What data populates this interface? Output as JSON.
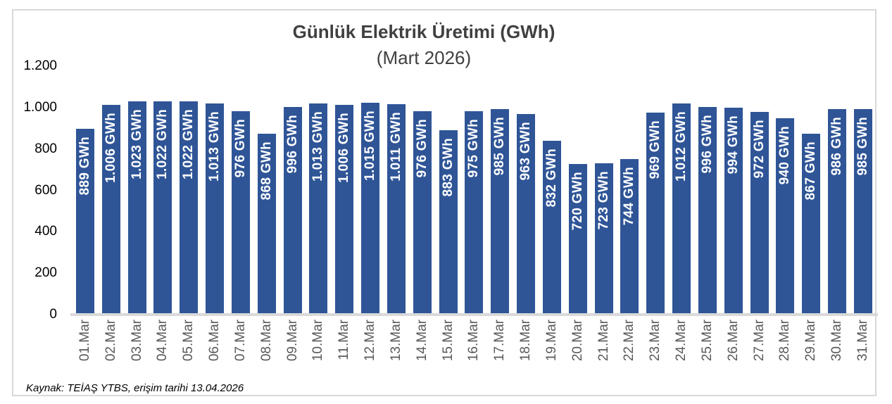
{
  "title": {
    "line1": "Günlük Elektrik Üretimi (GWh)",
    "line2": "(Mart 2026)"
  },
  "footer": {
    "source": "Kaynak: TEİAŞ YTBS, erişim tarihi 13.04.2026"
  },
  "colors": {
    "bar": "#2F5597",
    "bar_label": "#FFFFFF",
    "axis_line": "#D9D9D9",
    "frame_border": "#D8D8D8",
    "title_text": "#404040",
    "x_label_text": "#595959",
    "y_label_text": "#000000"
  },
  "chart_data": {
    "type": "bar",
    "title": "Günlük Elektrik Üretimi (GWh)",
    "subtitle": "(Mart 2026)",
    "unit": "GWh",
    "xlabel": "",
    "ylabel": "",
    "ylim": [
      0,
      1200
    ],
    "y_tick_values": [
      0,
      200,
      400,
      600,
      800,
      1000,
      1200
    ],
    "y_tick_labels": [
      "0",
      "200",
      "400",
      "600",
      "800",
      "1.000",
      "1.200"
    ],
    "grid": false,
    "legend": false,
    "categories": [
      "01.Mar",
      "02.Mar",
      "03.Mar",
      "04.Mar",
      "05.Mar",
      "06.Mar",
      "07.Mar",
      "08.Mar",
      "09.Mar",
      "10.Mar",
      "11.Mar",
      "12.Mar",
      "13.Mar",
      "14.Mar",
      "15.Mar",
      "16.Mar",
      "17.Mar",
      "18.Mar",
      "19.Mar",
      "20.Mar",
      "21.Mar",
      "22.Mar",
      "23.Mar",
      "24.Mar",
      "25.Mar",
      "26.Mar",
      "27.Mar",
      "28.Mar",
      "29.Mar",
      "30.Mar",
      "31.Mar"
    ],
    "values": [
      889,
      1006,
      1023,
      1022,
      1022,
      1013,
      976,
      868,
      996,
      1013,
      1006,
      1015,
      1011,
      976,
      883,
      975,
      985,
      963,
      832,
      720,
      723,
      744,
      969,
      1012,
      996,
      994,
      972,
      940,
      867,
      986,
      985
    ],
    "bar_labels": [
      "889 GWh",
      "1.006 GWh",
      "1.023 GWh",
      "1.022 GWh",
      "1.022 GWh",
      "1.013 GWh",
      "976 GWh",
      "868 GWh",
      "996 GWh",
      "1.013 GWh",
      "1.006 GWh",
      "1.015 GWh",
      "1.011 GWh",
      "976 GWh",
      "883 GWh",
      "975 GWh",
      "985 GWh",
      "963 GWh",
      "832 GWh",
      "720 GWh",
      "723 GWh",
      "744 GWh",
      "969 GWh",
      "1.012 GWh",
      "996 GWh",
      "994 GWh",
      "972 GWh",
      "940 GWh",
      "867 GWh",
      "986 GWh",
      "985 GWh"
    ]
  }
}
